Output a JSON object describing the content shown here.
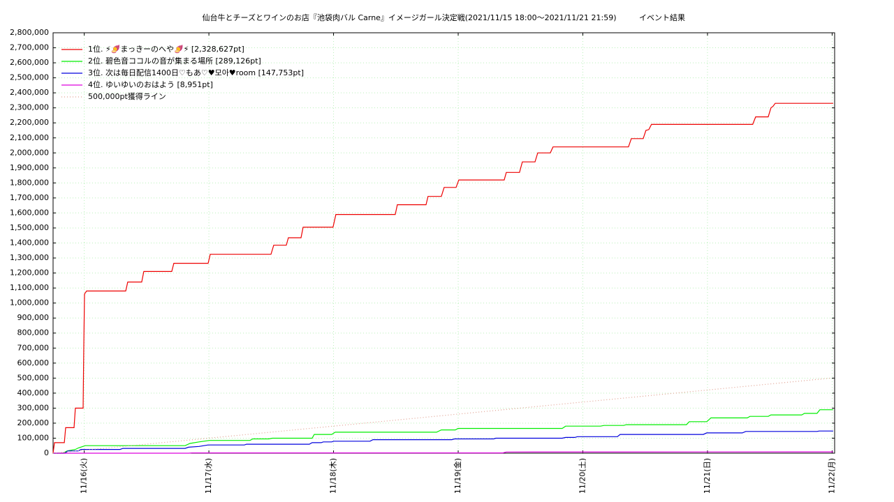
{
  "chart_data": {
    "type": "line",
    "title": "仙台牛とチーズとワインのお店『池袋肉バル Carne』イメージガール決定戦(2021/11/15 18:00～2021/11/21 21:59)",
    "subtitle": "イベント結果",
    "xlim": [
      15.75,
      22.02
    ],
    "xticks": [
      {
        "value": 16,
        "label": "11/16(火)"
      },
      {
        "value": 17,
        "label": "11/17(水)"
      },
      {
        "value": 18,
        "label": "11/18(木)"
      },
      {
        "value": 19,
        "label": "11/19(金)"
      },
      {
        "value": 20,
        "label": "11/20(土)"
      },
      {
        "value": 21,
        "label": "11/21(日)"
      },
      {
        "value": 22,
        "label": "11/22(月)"
      }
    ],
    "ylim": [
      0,
      2800000
    ],
    "yticks": [
      0,
      {
        "value": 100000,
        "label": "100,000"
      },
      {
        "value": 200000,
        "label": "200,000"
      },
      {
        "value": 300000,
        "label": "300,000"
      },
      {
        "value": 400000,
        "label": "400,000"
      },
      {
        "value": 500000,
        "label": "500,000"
      },
      {
        "value": 600000,
        "label": "600,000"
      },
      {
        "value": 700000,
        "label": "700,000"
      },
      {
        "value": 800000,
        "label": "800,000"
      },
      {
        "value": 900000,
        "label": "900,000"
      },
      {
        "value": 1000000,
        "label": "1,000,000"
      },
      {
        "value": 1100000,
        "label": "1,100,000"
      },
      {
        "value": 1200000,
        "label": "1,200,000"
      },
      {
        "value": 1300000,
        "label": "1,300,000"
      },
      {
        "value": 1400000,
        "label": "1,400,000"
      },
      {
        "value": 1500000,
        "label": "1,500,000"
      },
      {
        "value": 1600000,
        "label": "1,600,000"
      },
      {
        "value": 1700000,
        "label": "1,700,000"
      },
      {
        "value": 1800000,
        "label": "1,800,000"
      },
      {
        "value": 1900000,
        "label": "1,900,000"
      },
      {
        "value": 2000000,
        "label": "2,000,000"
      },
      {
        "value": 2100000,
        "label": "2,100,000"
      },
      {
        "value": 2200000,
        "label": "2,200,000"
      },
      {
        "value": 2300000,
        "label": "2,300,000"
      },
      {
        "value": 2400000,
        "label": "2,400,000"
      },
      {
        "value": 2500000,
        "label": "2,500,000"
      },
      {
        "value": 2600000,
        "label": "2,600,000"
      },
      {
        "value": 2700000,
        "label": "2,700,000"
      },
      {
        "value": 2800000,
        "label": "2,800,000"
      }
    ],
    "grid": true,
    "legend": "upper left",
    "series": [
      {
        "name": "1位. ⚡🍠まっきーのへや🍠⚡ [2,328,627pt]",
        "color": "#ee0000",
        "x": [
          15.75,
          15.761,
          15.84,
          15.851,
          15.918,
          15.929,
          15.991,
          15.996,
          16.002,
          16.019,
          16.333,
          16.349,
          16.461,
          16.478,
          16.702,
          16.719,
          16.994,
          17.011,
          17.498,
          17.52,
          17.621,
          17.638,
          17.739,
          17.756,
          17.996,
          18.019,
          18.495,
          18.512,
          18.742,
          18.758,
          18.865,
          18.887,
          18.983,
          19.005,
          19.369,
          19.386,
          19.492,
          19.515,
          19.616,
          19.638,
          19.739,
          19.761,
          20.366,
          20.389,
          20.484,
          20.506,
          20.529,
          20.551,
          21.363,
          21.386,
          21.487,
          21.509,
          21.526,
          21.543,
          22.008
        ],
        "values": [
          0,
          70000,
          70000,
          170000,
          170000,
          300000,
          300000,
          680000,
          1060000,
          1080000,
          1080000,
          1140000,
          1140000,
          1210000,
          1210000,
          1265000,
          1265000,
          1325000,
          1325000,
          1385000,
          1385000,
          1435000,
          1435000,
          1505000,
          1505000,
          1590000,
          1590000,
          1655000,
          1655000,
          1710000,
          1710000,
          1770000,
          1770000,
          1820000,
          1820000,
          1870000,
          1870000,
          1940000,
          1940000,
          2000000,
          2000000,
          2040000,
          2040000,
          2095000,
          2095000,
          2150000,
          2155000,
          2190000,
          2190000,
          2240000,
          2240000,
          2300000,
          2310000,
          2330000,
          2330000
        ]
      },
      {
        "name": "2位. 碧色音ココルの音が集まる場所 [289,126pt]",
        "color": "#00ee00",
        "x": [
          15.75,
          15.828,
          15.862,
          15.929,
          15.952,
          16.008,
          16.809,
          16.848,
          16.921,
          17.005,
          17.33,
          17.352,
          17.481,
          17.509,
          17.828,
          17.845,
          17.985,
          18.013,
          18.826,
          18.865,
          18.977,
          18.999,
          19.834,
          19.862,
          20.142,
          20.17,
          20.327,
          20.349,
          20.831,
          20.854,
          20.994,
          21.027,
          21.319,
          21.341,
          21.487,
          21.509,
          21.756,
          21.778,
          21.879,
          21.901,
          22.008
        ],
        "values": [
          0,
          0,
          15000,
          25000,
          35000,
          50000,
          50000,
          65000,
          75000,
          85000,
          85000,
          95000,
          95000,
          100000,
          100000,
          125000,
          125000,
          140000,
          140000,
          155000,
          155000,
          165000,
          165000,
          180000,
          180000,
          185000,
          185000,
          190000,
          190000,
          210000,
          210000,
          235000,
          235000,
          245000,
          245000,
          255000,
          255000,
          265000,
          265000,
          289126,
          289126
        ]
      },
      {
        "name": "3位. 次は毎日配信1400日♡もあ♡♥모아♥room [147,753pt]",
        "color": "#0000dd",
        "x": [
          15.75,
          15.845,
          15.868,
          15.952,
          15.974,
          16.288,
          16.31,
          16.809,
          16.837,
          16.921,
          16.994,
          17.285,
          17.302,
          17.806,
          17.828,
          17.901,
          17.918,
          17.985,
          18.002,
          18.293,
          18.316,
          18.949,
          18.971,
          19.285,
          19.302,
          19.834,
          19.862,
          19.935,
          19.957,
          20.277,
          20.299,
          20.966,
          20.994,
          21.279,
          21.307,
          21.879,
          21.896,
          22.008
        ],
        "values": [
          0,
          0,
          15000,
          15000,
          25000,
          25000,
          32000,
          32000,
          40000,
          45000,
          55000,
          55000,
          60000,
          60000,
          70000,
          70000,
          75000,
          75000,
          80000,
          80000,
          90000,
          90000,
          95000,
          95000,
          100000,
          100000,
          105000,
          105000,
          110000,
          110000,
          125000,
          125000,
          135000,
          135000,
          145000,
          145000,
          147753,
          147753
        ]
      },
      {
        "name": "4位. ゆいゆいのおはよう [8,951pt]",
        "color": "#dd00dd",
        "x": [
          15.75,
          16.837,
          16.865,
          19.358,
          19.386,
          22.008
        ],
        "values": [
          0,
          0,
          2000,
          2000,
          8000,
          8951
        ]
      },
      {
        "name": "500,000pt獲得ライン",
        "color": "#e0a090",
        "dash": "dotted",
        "x": [
          15.75,
          21.99
        ],
        "values": [
          0,
          500000
        ]
      }
    ]
  }
}
